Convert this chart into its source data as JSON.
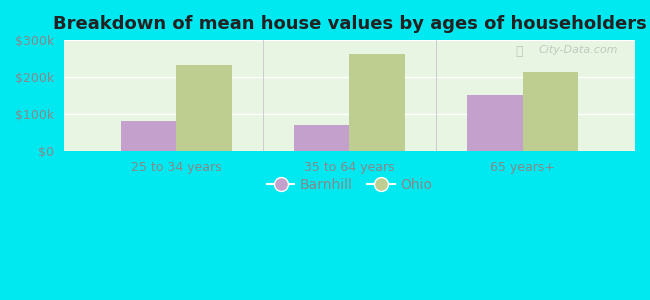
{
  "title": "Breakdown of mean house values by ages of householders",
  "categories": [
    "25 to 34 years",
    "35 to 64 years",
    "65 years+"
  ],
  "barnhill_values": [
    80000,
    70000,
    152000
  ],
  "ohio_values": [
    232000,
    262000,
    215000
  ],
  "ylim": [
    0,
    300000
  ],
  "yticks": [
    0,
    100000,
    200000,
    300000
  ],
  "ytick_labels": [
    "$0",
    "$100k",
    "$200k",
    "$300k"
  ],
  "barnhill_color": "#c4a0cc",
  "ohio_color": "#bece90",
  "bg_outer": "#00e8f0",
  "bar_width": 0.32,
  "legend_barnhill": "Barnhill",
  "legend_ohio": "Ohio",
  "title_fontsize": 13,
  "tick_fontsize": 9,
  "legend_fontsize": 10,
  "tick_color": "#888888",
  "title_color": "#222222"
}
